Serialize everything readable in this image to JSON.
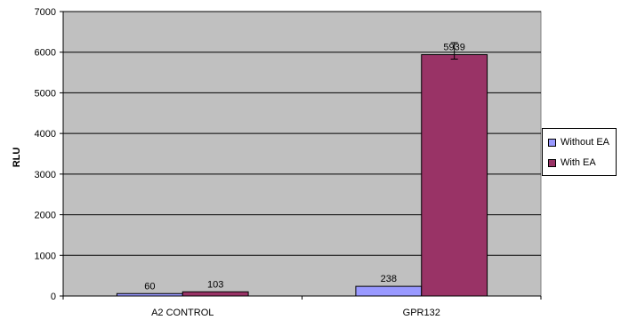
{
  "chart_data": {
    "type": "bar",
    "categories": [
      "A2 CONTROL",
      "GPR132"
    ],
    "series": [
      {
        "name": "Without EA",
        "values": [
          60,
          238
        ],
        "color": "#9999ff",
        "value_labels": [
          "60",
          "238"
        ]
      },
      {
        "name": "With EA",
        "values": [
          103,
          5939
        ],
        "color": "#993366",
        "value_labels": [
          "103",
          "5939"
        ]
      }
    ],
    "error_bars": {
      "series": "With EA",
      "category": "GPR132",
      "upper": 6235,
      "lower": 5830
    },
    "title": "",
    "xlabel": "",
    "ylabel": "RLU",
    "ylim": [
      0,
      7000
    ],
    "yticks": [
      "0",
      "1000",
      "2000",
      "3000",
      "4000",
      "5000",
      "6000",
      "7000"
    ],
    "grid": true,
    "plot_background": "#c0c0c0",
    "legend_position": "right"
  }
}
